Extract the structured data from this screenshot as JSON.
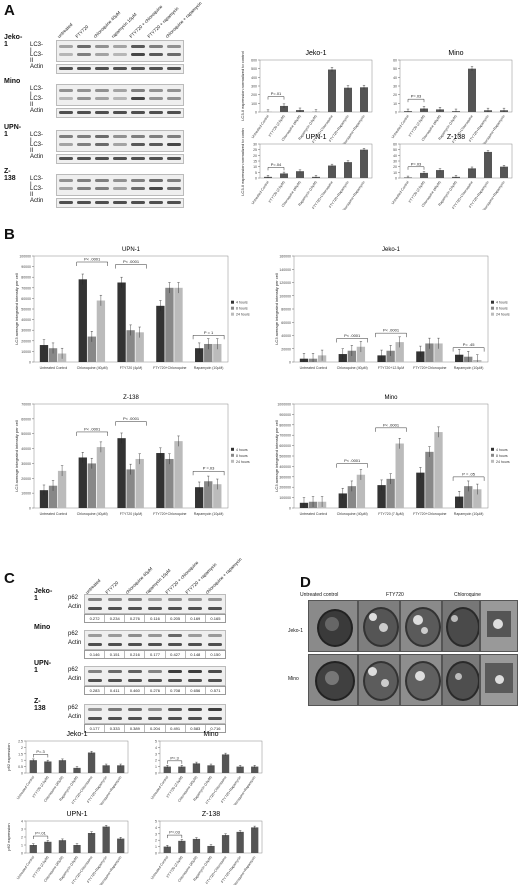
{
  "panels": {
    "A": "A",
    "B": "B",
    "C": "C",
    "D": "D"
  },
  "panelA": {
    "lanes": [
      "untreated",
      "FTY720",
      "chloroquine 40μM",
      "rapamycin 10μM",
      "FTY720 + chloroquine",
      "FTY720 + rapamycin",
      "chloroquine + rapamycin"
    ],
    "cells": [
      "Jeko-1",
      "Mino",
      "UPN-1",
      "Z-138"
    ],
    "rows": [
      "LC3-I",
      "LC3-II",
      "Actin"
    ]
  },
  "panelC": {
    "lanes": [
      "untreated",
      "FTY720",
      "chloroquine 40μM",
      "rapamycin 10μM",
      "FTY720 + chloroquine",
      "FTY720 + rapamycin",
      "chloroquine + rapamycin"
    ],
    "rows": [
      "p62",
      "Actin"
    ],
    "blots": [
      {
        "cell": "Jeko-1",
        "values": [
          "0.272",
          "0.234",
          "0.276",
          "0.116",
          "0.205",
          "0.169",
          "0.165"
        ]
      },
      {
        "cell": "Mino",
        "values": [
          "0.146",
          "0.151",
          "0.216",
          "0.177",
          "0.427",
          "0.148",
          "0.150"
        ]
      },
      {
        "cell": "UPN-1",
        "values": [
          "0.283",
          "0.411",
          "0.460",
          "0.276",
          "0.708",
          "0.656",
          "0.571"
        ]
      },
      {
        "cell": "Z-138",
        "values": [
          "0.177",
          "0.333",
          "0.389",
          "0.204",
          "0.491",
          "0.583",
          "0.716"
        ]
      }
    ]
  },
  "panelD": {
    "headers": [
      "Untreated control",
      "FTY720",
      "Chloroquine"
    ],
    "rows": [
      "Jeko-1",
      "Mino"
    ]
  },
  "chart_data": [
    {
      "id": "A-Jeko-1",
      "type": "bar",
      "title": "Jeko-1",
      "ylabel": "LC3-II expression normalized to control",
      "ylim": [
        0,
        600
      ],
      "yticks": [
        "0",
        "100",
        "200",
        "300",
        "400",
        "500",
        "600"
      ],
      "categories": [
        "Untreated Control",
        "FTY720 (2.5μM)",
        "Chloroquine (40μM)",
        "Rapamycin (10μM)",
        "FTY720+Chloroquine",
        "FTY720+Rapamycin",
        "Chloroquine+Rapamycin"
      ],
      "values": [
        1,
        70,
        22,
        2,
        490,
        280,
        285
      ],
      "annotation": "P=.01"
    },
    {
      "id": "A-Mino",
      "type": "bar",
      "title": "Mino",
      "ylim": [
        0,
        60
      ],
      "yticks": [
        "0",
        "10",
        "20",
        "30",
        "40",
        "50",
        "60"
      ],
      "categories": [
        "Untreated Control",
        "FTY720 (2.5μM)",
        "Chloroquine (40μM)",
        "Rapamycin (10μM)",
        "FTY720+Chloroquine",
        "FTY720+Rapamycin",
        "Chloroquine+Rapamycin"
      ],
      "values": [
        1,
        4,
        3,
        1,
        50,
        2,
        2
      ],
      "annotation": "P=.03"
    },
    {
      "id": "A-UPN-1",
      "type": "bar",
      "title": "UPN-1",
      "ylabel": "LC3-II expression normalized to control",
      "ylim": [
        0,
        30
      ],
      "yticks": [
        "0",
        "5",
        "10",
        "15",
        "20",
        "25",
        "30"
      ],
      "categories": [
        "Untreated Control",
        "FTY720 (2.5μM)",
        "Chloroquine (40μM)",
        "Rapamycin (10μM)",
        "FTY720+Chloroquine",
        "FTY720+Rapamycin",
        "Chloroquine+Rapamycin"
      ],
      "values": [
        1,
        4,
        6,
        1,
        11,
        14,
        25
      ],
      "annotation": "P=.04"
    },
    {
      "id": "A-Z-138",
      "type": "bar",
      "title": "Z-138",
      "ylim": [
        0,
        60
      ],
      "yticks": [
        "0",
        "10",
        "20",
        "30",
        "40",
        "50",
        "60"
      ],
      "categories": [
        "Untreated Control",
        "FTY720 (2.5μM)",
        "Chloroquine (40μM)",
        "Rapamycin (10μM)",
        "FTY720+Chloroquine",
        "FTY720+Rapamycin",
        "Chloroquine+Rapamycin"
      ],
      "values": [
        1,
        9,
        14,
        2,
        17,
        46,
        20
      ],
      "annotation": "P=.03"
    },
    {
      "id": "B-UPN-1",
      "type": "bar",
      "title": "UPN-1",
      "ylabel": "LC3 average integrated intensity per cell",
      "ylim": [
        0,
        100000
      ],
      "yticks": [
        "0",
        "10000",
        "20000",
        "30000",
        "40000",
        "50000",
        "60000",
        "70000",
        "80000",
        "90000",
        "100000"
      ],
      "categories": [
        "Untreated Control",
        "Chloroquine (40μM)",
        "FTY720 (4μM)",
        "FTY720+Chloroquine",
        "Rapamycin (10μM)"
      ],
      "series": [
        {
          "name": "4 hours",
          "values": [
            16000,
            78000,
            75000,
            53000,
            13000
          ]
        },
        {
          "name": "8 hours",
          "values": [
            13000,
            24000,
            30000,
            70000,
            17000
          ]
        },
        {
          "name": "24 hours",
          "values": [
            8000,
            58000,
            28000,
            70000,
            17000
          ]
        }
      ],
      "annotations": [
        "P< .0001",
        "P< .0001",
        "P = 1"
      ]
    },
    {
      "id": "B-Jeko-1",
      "type": "bar",
      "title": "Jeko-1",
      "ylabel": "LC3 average integrated intensity per cell",
      "ylim": [
        0,
        160000
      ],
      "yticks": [
        "0",
        "20000",
        "40000",
        "60000",
        "80000",
        "100000",
        "120000",
        "140000",
        "160000"
      ],
      "categories": [
        "Untreated Control",
        "Chloroquine (40μM)",
        "FTY720+12.5μM",
        "FTY720+Chloroquine",
        "Rapamycin (10μM)"
      ],
      "series": [
        {
          "name": "4 hours",
          "values": [
            5000,
            12000,
            10000,
            16000,
            11000
          ]
        },
        {
          "name": "8 hours",
          "values": [
            5000,
            17000,
            17000,
            28000,
            8000
          ]
        },
        {
          "name": "24 hours",
          "values": [
            10000,
            23000,
            30000,
            28000,
            3000
          ]
        }
      ],
      "annotations": [
        "P< .0001",
        "P< .0001",
        "P= .45"
      ]
    },
    {
      "id": "B-Z-138",
      "type": "bar",
      "title": "Z-138",
      "ylabel": "LC3 average integrated intensity per cell",
      "ylim": [
        0,
        70000
      ],
      "yticks": [
        "0",
        "10000",
        "20000",
        "30000",
        "40000",
        "50000",
        "60000",
        "70000"
      ],
      "categories": [
        "Untreated Control",
        "Chloroquine (40μM)",
        "FTY720 (4μM)",
        "FTY720+Chloroquine",
        "Rapamycin (10μM)"
      ],
      "series": [
        {
          "name": "4 hours",
          "values": [
            12000,
            34000,
            47000,
            37000,
            14000
          ]
        },
        {
          "name": "8 hours",
          "values": [
            15000,
            30000,
            26000,
            33000,
            18000
          ]
        },
        {
          "name": "24 hours",
          "values": [
            25000,
            41000,
            33000,
            45000,
            16000
          ]
        }
      ],
      "annotations": [
        "P< .0001",
        "P< .0001",
        "P =.03"
      ]
    },
    {
      "id": "B-Mino",
      "type": "bar",
      "title": "Mino",
      "ylabel": "LC3 average integrated intensity per cell",
      "ylim": [
        0,
        1000000
      ],
      "yticks": [
        "0",
        "100000",
        "200000",
        "300000",
        "400000",
        "500000",
        "600000",
        "700000",
        "800000",
        "900000",
        "1000000"
      ],
      "categories": [
        "Untreated Control",
        "Chloroquine (40μM)",
        "FTY720 (7.5μM)",
        "FTY720+Chloroquine",
        "Rapamycin (10μM)"
      ],
      "series": [
        {
          "name": "4 hours",
          "values": [
            50000,
            140000,
            220000,
            340000,
            110000
          ]
        },
        {
          "name": "8 hours",
          "values": [
            60000,
            210000,
            280000,
            540000,
            210000
          ]
        },
        {
          "name": "24 hours",
          "values": [
            60000,
            320000,
            620000,
            730000,
            180000
          ]
        }
      ],
      "annotations": [
        "P< .0001",
        "P< .0001",
        "P = .05"
      ]
    },
    {
      "id": "C-Jeko-1",
      "type": "bar",
      "title": "Jeko-1",
      "ylabel": "p62 expression",
      "ylim": [
        0,
        2.5
      ],
      "yticks": [
        "0",
        "0.5",
        "1",
        "1.5",
        "2",
        "2.5"
      ],
      "categories": [
        "Untreated Control",
        "FTY720 (2.5μM)",
        "Chloroquine (40μM)",
        "Rapamycin (10μM)",
        "FTY720+Chloroquine",
        "FTY720+Rapamycin",
        "Chloroquine+Rapamycin"
      ],
      "values": [
        1,
        0.9,
        1,
        0.4,
        1.6,
        0.6,
        0.6
      ],
      "annotation": "P=.3"
    },
    {
      "id": "C-Mino",
      "type": "bar",
      "title": "Mino",
      "ylim": [
        0,
        5
      ],
      "yticks": [
        "0",
        "1",
        "2",
        "3",
        "4",
        "5"
      ],
      "categories": [
        "Untreated Control",
        "FTY720 (2.5μM)",
        "Chloroquine (40μM)",
        "Rapamycin (10μM)",
        "FTY720+Chloroquine",
        "FTY720+Rapamycin",
        "Chloroquine+Rapamycin"
      ],
      "values": [
        1,
        1,
        1.5,
        1.2,
        2.9,
        1,
        1
      ],
      "annotation": "P=.3"
    },
    {
      "id": "C-UPN-1",
      "type": "bar",
      "title": "UPN-1",
      "ylabel": "p62 expression",
      "ylim": [
        0,
        4
      ],
      "yticks": [
        "0",
        "1",
        "2",
        "3",
        "4"
      ],
      "categories": [
        "Untreated Control",
        "FTY720 (2.5μM)",
        "Chloroquine (40μM)",
        "Rapamycin (10μM)",
        "FTY720+Chloroquine",
        "FTY720+Rapamycin",
        "Chloroquine+Rapamycin"
      ],
      "values": [
        1,
        1.4,
        1.6,
        1,
        2.5,
        3.3,
        1.8
      ],
      "annotation": "P=.01"
    },
    {
      "id": "C-Z-138",
      "type": "bar",
      "title": "Z-138",
      "ylim": [
        0,
        5
      ],
      "yticks": [
        "0",
        "1",
        "2",
        "3",
        "4",
        "5"
      ],
      "categories": [
        "Untreated Control",
        "FTY720 (2.5μM)",
        "Chloroquine (40μM)",
        "Rapamycin (10μM)",
        "FTY720+Chloroquine",
        "FTY720+Rapamycin",
        "Chloroquine+Rapamycin"
      ],
      "values": [
        1,
        1.9,
        2.2,
        1.1,
        2.8,
        3.3,
        4
      ],
      "annotation": "P=.03"
    }
  ]
}
